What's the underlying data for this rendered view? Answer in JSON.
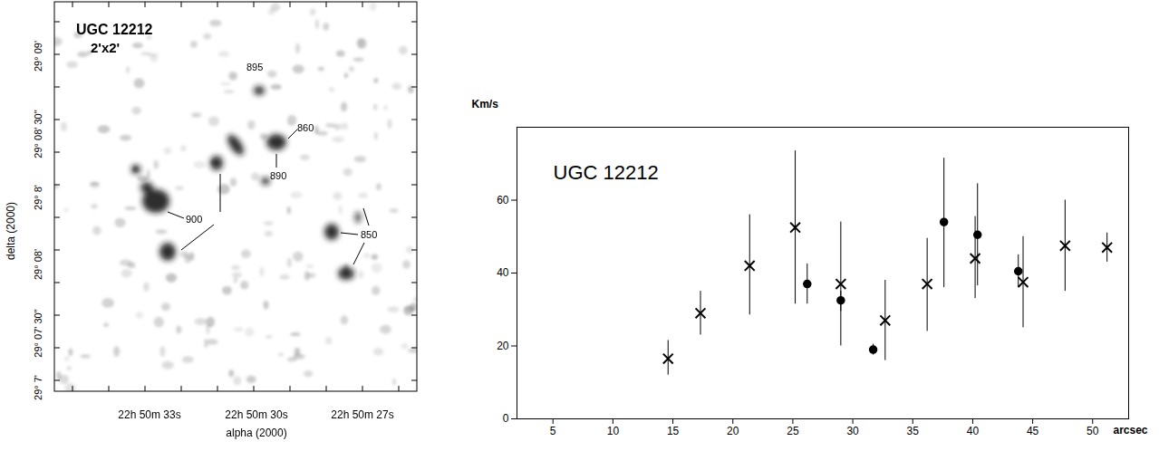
{
  "image_panel": {
    "title": "UGC 12212",
    "subtitle": "2'x2'",
    "x_label": "alpha (2000)",
    "y_label": "delta (2000)",
    "x_tick_labels": [
      "22h 50m 33s",
      "22h 50m 30s",
      "22h 50m 27s"
    ],
    "y_tick_labels": [
      "29° 09'",
      "29° 08' 30\"",
      "29° 8'",
      "29° 08'",
      "29° 07' 30\"",
      "29° 7'"
    ],
    "annotations": [
      "895",
      "860",
      "890",
      "900",
      "850"
    ]
  },
  "chart_data": {
    "type": "scatter",
    "title": "UGC 12212",
    "y_label": "Km/s",
    "x_label": "arcsec",
    "xlim": [
      2,
      53
    ],
    "ylim": [
      0,
      80
    ],
    "xticks": [
      5,
      10,
      15,
      20,
      25,
      30,
      35,
      40,
      45,
      50
    ],
    "yticks": [
      0,
      20,
      40,
      60
    ],
    "series": [
      {
        "marker": "x",
        "color": "#000000",
        "x": [
          14.6,
          17.3,
          21.4,
          25.2,
          29,
          32.7,
          36.2,
          40.2,
          44.2,
          47.7,
          51.2
        ],
        "values": [
          16.5,
          29,
          42,
          52.5,
          37,
          27,
          37,
          44,
          37.5,
          47.5,
          47
        ],
        "error_low": [
          12,
          23,
          28.5,
          31.5,
          20,
          16,
          24,
          33,
          25,
          35,
          43
        ],
        "error_high": [
          21.5,
          35,
          56,
          73.5,
          54,
          38,
          49.5,
          55.5,
          50,
          60,
          51
        ]
      },
      {
        "marker": "circle",
        "color": "#000000",
        "x": [
          26.2,
          29,
          31.7,
          37.6,
          40.4,
          43.8
        ],
        "values": [
          37,
          32.5,
          19,
          54,
          50.5,
          40.5
        ],
        "error_low": [
          31.5,
          29.5,
          17.5,
          36,
          36.5,
          36
        ],
        "error_high": [
          42.5,
          35,
          20.5,
          71.5,
          64.5,
          45
        ]
      }
    ]
  }
}
